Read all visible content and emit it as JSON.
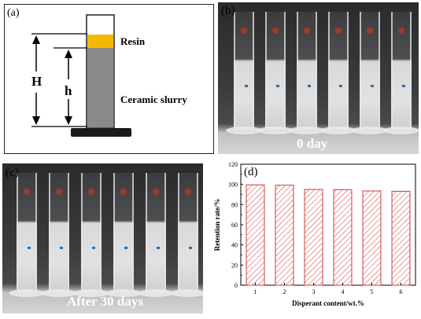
{
  "panels": {
    "a": {
      "label": "(a)",
      "resin_label": "Resin",
      "slurry_label": "Ceramic slurry",
      "H_label": "H",
      "h_label": "h",
      "colors": {
        "resin": "#f5b800",
        "slurry": "#8a8a8a",
        "base": "#1a1a1a"
      }
    },
    "b": {
      "label": "(b)",
      "caption": "0 day",
      "cylinder_count": 6
    },
    "c": {
      "label": "(c)",
      "caption": "After 30 days",
      "cylinder_count": 6
    },
    "d": {
      "label": "(d)"
    }
  },
  "chart_data": {
    "type": "bar",
    "categories": [
      "1",
      "2",
      "3",
      "4",
      "5",
      "6"
    ],
    "values": [
      99.5,
      99.2,
      95.0,
      94.8,
      93.5,
      93.2
    ],
    "xlabel": "Disperant content/wt.%",
    "ylabel": "Retention rate/%",
    "ylim": [
      0,
      120
    ],
    "yticks": [
      "0",
      "20",
      "40",
      "60",
      "80",
      "100",
      "120"
    ],
    "bar_fill": "hatched",
    "bar_color": "#d23a3a"
  }
}
